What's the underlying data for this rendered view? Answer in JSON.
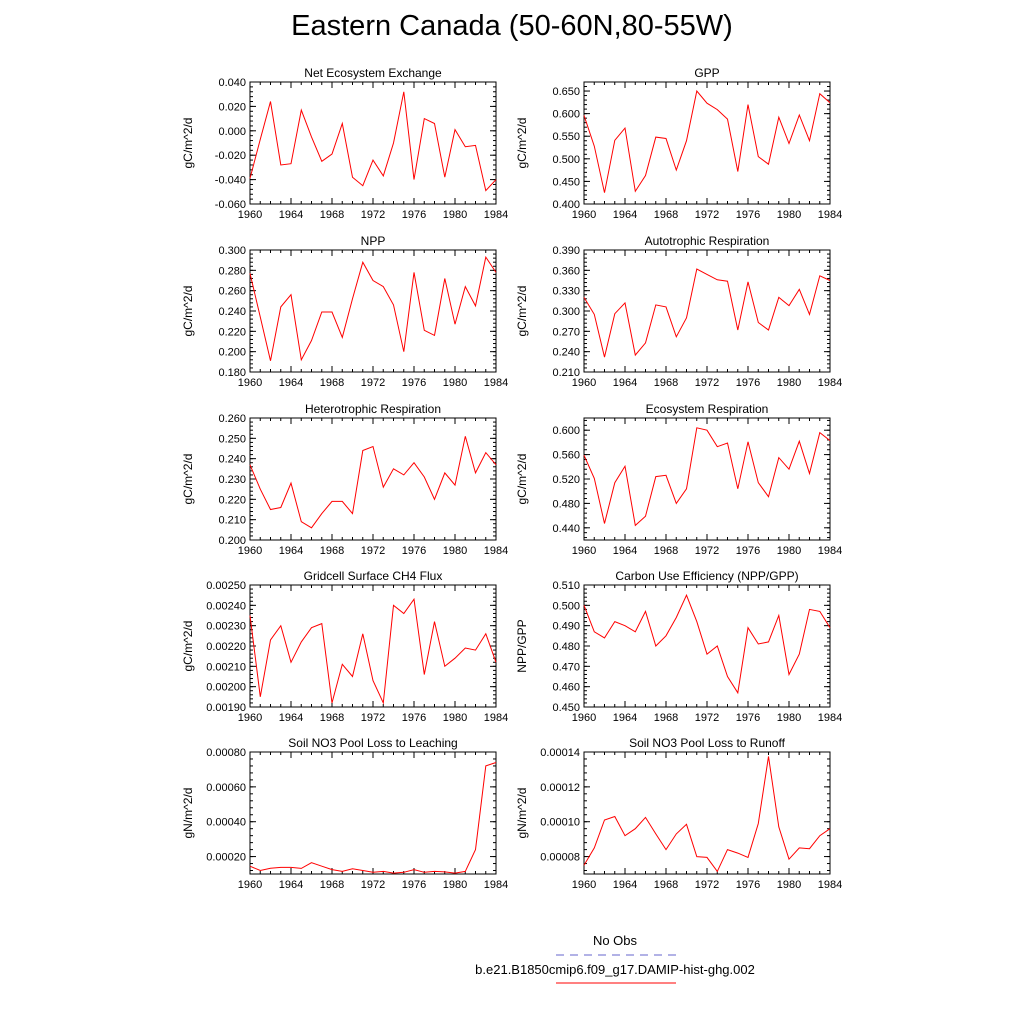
{
  "page": {
    "title": "Eastern Canada (50-60N,80-55W)"
  },
  "chart_data": [
    {
      "type": "line",
      "title": "Net Ecosystem Exchange",
      "ylabel": "gC/m^2/d",
      "ylim": [
        -0.06,
        0.04
      ],
      "yticks": [
        "-0.060",
        "-0.040",
        "-0.020",
        "0.000",
        "0.020",
        "0.040"
      ],
      "xticks": [
        "1960",
        "1964",
        "1968",
        "1972",
        "1976",
        "1980",
        "1984"
      ],
      "x": [
        1960,
        1961,
        1962,
        1963,
        1964,
        1965,
        1966,
        1967,
        1968,
        1969,
        1970,
        1971,
        1972,
        1973,
        1974,
        1975,
        1976,
        1977,
        1978,
        1979,
        1980,
        1981,
        1982,
        1983,
        1984
      ],
      "series": [
        {
          "values": [
            -0.039,
            -0.007,
            0.024,
            -0.028,
            -0.027,
            0.017,
            -0.005,
            -0.025,
            -0.019,
            0.006,
            -0.038,
            -0.045,
            -0.024,
            -0.037,
            -0.01,
            0.032,
            -0.04,
            0.01,
            0.006,
            -0.038,
            0.001,
            -0.013,
            -0.012,
            -0.049,
            -0.04
          ],
          "color": "#ff0000"
        }
      ]
    },
    {
      "type": "line",
      "title": "GPP",
      "ylabel": "gC/m^2/d",
      "ylim": [
        0.4,
        0.67
      ],
      "yticks": [
        "0.400",
        "0.450",
        "0.500",
        "0.550",
        "0.600",
        "0.650"
      ],
      "xticks": [
        "1960",
        "1964",
        "1968",
        "1972",
        "1976",
        "1980",
        "1984"
      ],
      "x": [
        1960,
        1961,
        1962,
        1963,
        1964,
        1965,
        1966,
        1967,
        1968,
        1969,
        1970,
        1971,
        1972,
        1973,
        1974,
        1975,
        1976,
        1977,
        1978,
        1979,
        1980,
        1981,
        1982,
        1983,
        1984
      ],
      "series": [
        {
          "values": [
            0.596,
            0.528,
            0.425,
            0.541,
            0.568,
            0.428,
            0.463,
            0.548,
            0.545,
            0.475,
            0.54,
            0.65,
            0.623,
            0.609,
            0.588,
            0.472,
            0.62,
            0.505,
            0.488,
            0.592,
            0.534,
            0.597,
            0.54,
            0.644,
            0.624
          ],
          "color": "#ff0000"
        }
      ]
    },
    {
      "type": "line",
      "title": "NPP",
      "ylabel": "gC/m^2/d",
      "ylim": [
        0.18,
        0.3
      ],
      "yticks": [
        "0.180",
        "0.200",
        "0.220",
        "0.240",
        "0.260",
        "0.280",
        "0.300"
      ],
      "xticks": [
        "1960",
        "1964",
        "1968",
        "1972",
        "1976",
        "1980",
        "1984"
      ],
      "x": [
        1960,
        1961,
        1962,
        1963,
        1964,
        1965,
        1966,
        1967,
        1968,
        1969,
        1970,
        1971,
        1972,
        1973,
        1974,
        1975,
        1976,
        1977,
        1978,
        1979,
        1980,
        1981,
        1982,
        1983,
        1984
      ],
      "series": [
        {
          "values": [
            0.277,
            0.234,
            0.191,
            0.244,
            0.256,
            0.192,
            0.211,
            0.239,
            0.239,
            0.214,
            0.252,
            0.288,
            0.27,
            0.264,
            0.246,
            0.2,
            0.278,
            0.221,
            0.216,
            0.272,
            0.227,
            0.264,
            0.245,
            0.293,
            0.278
          ],
          "color": "#ff0000"
        }
      ]
    },
    {
      "type": "line",
      "title": "Autotrophic Respiration",
      "ylabel": "gC/m^2/d",
      "ylim": [
        0.21,
        0.39
      ],
      "yticks": [
        "0.210",
        "0.240",
        "0.270",
        "0.300",
        "0.330",
        "0.360",
        "0.390"
      ],
      "xticks": [
        "1960",
        "1964",
        "1968",
        "1972",
        "1976",
        "1980",
        "1984"
      ],
      "x": [
        1960,
        1961,
        1962,
        1963,
        1964,
        1965,
        1966,
        1967,
        1968,
        1969,
        1970,
        1971,
        1972,
        1973,
        1974,
        1975,
        1976,
        1977,
        1978,
        1979,
        1980,
        1981,
        1982,
        1983,
        1984
      ],
      "series": [
        {
          "values": [
            0.32,
            0.295,
            0.232,
            0.296,
            0.312,
            0.235,
            0.253,
            0.309,
            0.306,
            0.262,
            0.29,
            0.362,
            0.354,
            0.346,
            0.344,
            0.272,
            0.343,
            0.283,
            0.272,
            0.32,
            0.308,
            0.332,
            0.295,
            0.352,
            0.345
          ],
          "color": "#ff0000"
        }
      ]
    },
    {
      "type": "line",
      "title": "Heterotrophic Respiration",
      "ylabel": "gC/m^2/d",
      "ylim": [
        0.2,
        0.26
      ],
      "yticks": [
        "0.200",
        "0.210",
        "0.220",
        "0.230",
        "0.240",
        "0.250",
        "0.260"
      ],
      "xticks": [
        "1960",
        "1964",
        "1968",
        "1972",
        "1976",
        "1980",
        "1984"
      ],
      "x": [
        1960,
        1961,
        1962,
        1963,
        1964,
        1965,
        1966,
        1967,
        1968,
        1969,
        1970,
        1971,
        1972,
        1973,
        1974,
        1975,
        1976,
        1977,
        1978,
        1979,
        1980,
        1981,
        1982,
        1983,
        1984
      ],
      "series": [
        {
          "values": [
            0.237,
            0.225,
            0.215,
            0.216,
            0.228,
            0.209,
            0.206,
            0.213,
            0.219,
            0.219,
            0.213,
            0.244,
            0.246,
            0.226,
            0.235,
            0.232,
            0.238,
            0.231,
            0.22,
            0.233,
            0.227,
            0.251,
            0.233,
            0.243,
            0.237
          ],
          "color": "#ff0000"
        }
      ]
    },
    {
      "type": "line",
      "title": "Ecosystem Respiration",
      "ylabel": "gC/m^2/d",
      "ylim": [
        0.42,
        0.62
      ],
      "yticks": [
        "0.440",
        "0.480",
        "0.520",
        "0.560",
        "0.600"
      ],
      "xticks": [
        "1960",
        "1964",
        "1968",
        "1972",
        "1976",
        "1980",
        "1984"
      ],
      "x": [
        1960,
        1961,
        1962,
        1963,
        1964,
        1965,
        1966,
        1967,
        1968,
        1969,
        1970,
        1971,
        1972,
        1973,
        1974,
        1975,
        1976,
        1977,
        1978,
        1979,
        1980,
        1981,
        1982,
        1983,
        1984
      ],
      "series": [
        {
          "values": [
            0.559,
            0.521,
            0.447,
            0.514,
            0.541,
            0.444,
            0.459,
            0.524,
            0.526,
            0.48,
            0.504,
            0.604,
            0.6,
            0.573,
            0.579,
            0.504,
            0.581,
            0.514,
            0.491,
            0.555,
            0.536,
            0.582,
            0.529,
            0.596,
            0.583
          ],
          "color": "#ff0000"
        }
      ]
    },
    {
      "type": "line",
      "title": "Gridcell Surface CH4 Flux",
      "ylabel": "gC/m^2/d",
      "ylim": [
        0.0019,
        0.0025
      ],
      "yticks": [
        "0.00190",
        "0.00200",
        "0.00210",
        "0.00220",
        "0.00230",
        "0.00240",
        "0.00250"
      ],
      "xticks": [
        "1960",
        "1964",
        "1968",
        "1972",
        "1976",
        "1980",
        "1984"
      ],
      "x": [
        1960,
        1961,
        1962,
        1963,
        1964,
        1965,
        1966,
        1967,
        1968,
        1969,
        1970,
        1971,
        1972,
        1973,
        1974,
        1975,
        1976,
        1977,
        1978,
        1979,
        1980,
        1981,
        1982,
        1983,
        1984
      ],
      "series": [
        {
          "values": [
            0.00235,
            0.00195,
            0.00223,
            0.0023,
            0.00212,
            0.00222,
            0.00229,
            0.00231,
            0.00192,
            0.00211,
            0.00205,
            0.00226,
            0.00203,
            0.00192,
            0.0024,
            0.00236,
            0.00243,
            0.00206,
            0.00232,
            0.0021,
            0.00214,
            0.00219,
            0.00218,
            0.00226,
            0.00212
          ],
          "color": "#ff0000"
        }
      ]
    },
    {
      "type": "line",
      "title": "Carbon Use Efficiency (NPP/GPP)",
      "ylabel": "NPP/GPP",
      "ylim": [
        0.45,
        0.51
      ],
      "yticks": [
        "0.450",
        "0.460",
        "0.470",
        "0.480",
        "0.490",
        "0.500",
        "0.510"
      ],
      "xticks": [
        "1960",
        "1964",
        "1968",
        "1972",
        "1976",
        "1980",
        "1984"
      ],
      "x": [
        1960,
        1961,
        1962,
        1963,
        1964,
        1965,
        1966,
        1967,
        1968,
        1969,
        1970,
        1971,
        1972,
        1973,
        1974,
        1975,
        1976,
        1977,
        1978,
        1979,
        1980,
        1981,
        1982,
        1983,
        1984
      ],
      "series": [
        {
          "values": [
            0.5,
            0.487,
            0.484,
            0.492,
            0.49,
            0.487,
            0.497,
            0.48,
            0.485,
            0.494,
            0.505,
            0.492,
            0.476,
            0.48,
            0.465,
            0.457,
            0.489,
            0.481,
            0.482,
            0.495,
            0.466,
            0.476,
            0.498,
            0.497,
            0.489
          ],
          "color": "#ff0000"
        }
      ]
    },
    {
      "type": "line",
      "title": "Soil NO3 Pool Loss to Leaching",
      "ylabel": "gN/m^2/d",
      "ylim": [
        0.0001,
        0.0008
      ],
      "yticks": [
        "0.00020",
        "0.00040",
        "0.00060",
        "0.00080"
      ],
      "xticks": [
        "1960",
        "1964",
        "1968",
        "1972",
        "1976",
        "1980",
        "1984"
      ],
      "x": [
        1960,
        1961,
        1962,
        1963,
        1964,
        1965,
        1966,
        1967,
        1968,
        1969,
        1970,
        1971,
        1972,
        1973,
        1974,
        1975,
        1976,
        1977,
        1978,
        1979,
        1980,
        1981,
        1982,
        1983,
        1984
      ],
      "series": [
        {
          "values": [
            0.000145,
            0.00012,
            0.000133,
            0.000138,
            0.000138,
            0.000132,
            0.000165,
            0.000145,
            0.000125,
            0.000115,
            0.00013,
            0.00012,
            0.00011,
            0.000115,
            0.000105,
            0.00011,
            0.000125,
            0.00011,
            0.000115,
            0.000112,
            0.000105,
            0.000115,
            0.00024,
            0.00072,
            0.00074
          ],
          "color": "#ff0000"
        }
      ]
    },
    {
      "type": "line",
      "title": "Soil NO3 Pool Loss to Runoff",
      "ylabel": "gN/m^2/d",
      "ylim": [
        7e-05,
        0.00014
      ],
      "yticks": [
        "0.00008",
        "0.00010",
        "0.00012",
        "0.00014"
      ],
      "xticks": [
        "1960",
        "1964",
        "1968",
        "1972",
        "1976",
        "1980",
        "1984"
      ],
      "x": [
        1960,
        1961,
        1962,
        1963,
        1964,
        1965,
        1966,
        1967,
        1968,
        1969,
        1970,
        1971,
        1972,
        1973,
        1974,
        1975,
        1976,
        1977,
        1978,
        1979,
        1980,
        1981,
        1982,
        1983,
        1984
      ],
      "series": [
        {
          "values": [
            7.5e-05,
            8.5e-05,
            0.000101,
            0.000103,
            9.2e-05,
            9.6e-05,
            0.0001025,
            9.3e-05,
            8.4e-05,
            9.3e-05,
            9.85e-05,
            8e-05,
            7.95e-05,
            7.15e-05,
            8.4e-05,
            8.2e-05,
            7.95e-05,
            9.9e-05,
            0.0001375,
            9.7e-05,
            7.85e-05,
            8.5e-05,
            8.45e-05,
            9.2e-05,
            9.6e-05
          ],
          "color": "#ff0000"
        }
      ]
    }
  ],
  "legend": [
    {
      "label": "No Obs",
      "color": "#6666cc",
      "style": "dashed"
    },
    {
      "label": "b.e21.B1850cmip6.f09_g17.DAMIP-hist-ghg.002",
      "color": "#ff0000",
      "style": "solid"
    }
  ]
}
